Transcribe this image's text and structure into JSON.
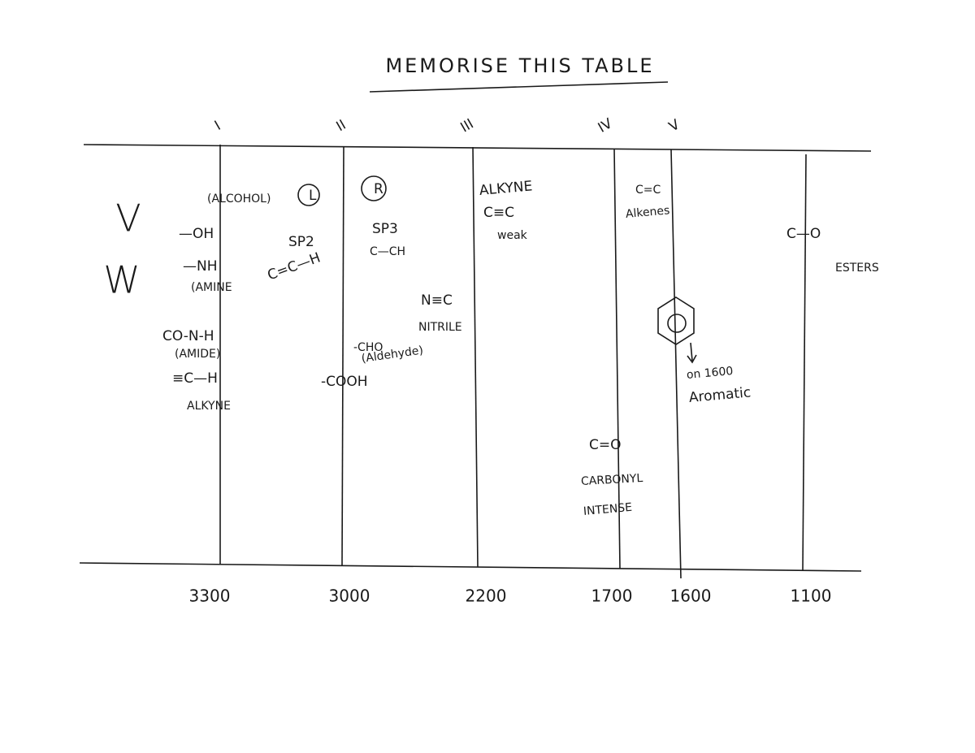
{
  "title": "MEMORISE THIS TABLE",
  "side_labels": [
    "V",
    "W"
  ],
  "columns": [
    {
      "numeral": "I",
      "wavenumber": 3300
    },
    {
      "numeral": "II",
      "wavenumber": 3000
    },
    {
      "numeral": "III",
      "wavenumber": 2200
    },
    {
      "numeral": "IV",
      "wavenumber": 1700
    },
    {
      "numeral": "V",
      "wavenumber": 1600
    },
    {
      "wavenumber": 1100
    }
  ],
  "notes": [
    "(ALCOHOL)",
    "L",
    "R",
    "—OH",
    "—NH",
    "(AMINE",
    "SP2",
    "C=C—H",
    "SP3",
    "C—CH",
    "ALKYNE",
    "C≡C",
    "weak",
    "C=C",
    "Alkenes",
    "C—O",
    "ESTERS",
    "CO-N-H",
    "(AMIDE)",
    "≡C—H",
    "ALKYNE",
    "N≡C",
    "NITRILE",
    "-CHO",
    "(Aldehyde)",
    "-COOH",
    "on 1600",
    "Aromatic",
    "C=O",
    "CARBONYL",
    "INTENSE"
  ]
}
